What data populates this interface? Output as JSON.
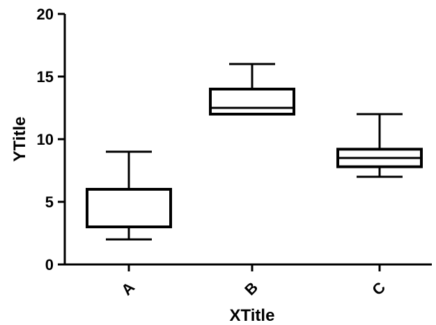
{
  "chart_data": {
    "type": "box",
    "title": "",
    "xlabel": "XTitle",
    "ylabel": "YTitle",
    "ylim": [
      0,
      20
    ],
    "yticks": [
      0,
      5,
      10,
      15,
      20
    ],
    "categories": [
      "A",
      "B",
      "C"
    ],
    "boxes": [
      {
        "category": "A",
        "min": 2,
        "q1": 3,
        "median": 3,
        "q3": 6,
        "max": 9
      },
      {
        "category": "B",
        "min": 12,
        "q1": 12,
        "median": 12.5,
        "q3": 14,
        "max": 16
      },
      {
        "category": "C",
        "min": 7,
        "q1": 7.8,
        "median": 8.5,
        "q3": 9.2,
        "max": 12
      }
    ],
    "grid": false,
    "legend": "none"
  }
}
